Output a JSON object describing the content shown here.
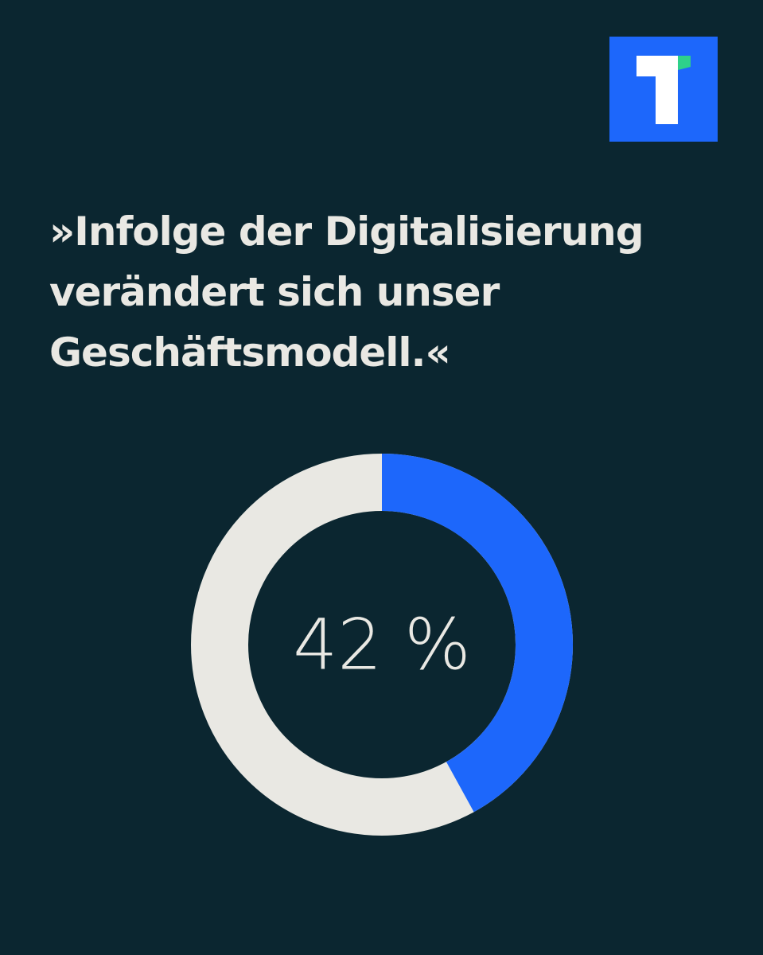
{
  "chart_data": {
    "type": "donut",
    "title": [
      "»Infolge der Digitalisierung",
      "verändert sich unser",
      "Geschäftsmodell.«"
    ],
    "values": [
      42
    ],
    "value_labels": [
      "42 %"
    ],
    "color": "#1d67fb",
    "track_color": "#e9e8e3",
    "ylim": [
      0,
      100
    ]
  }
}
